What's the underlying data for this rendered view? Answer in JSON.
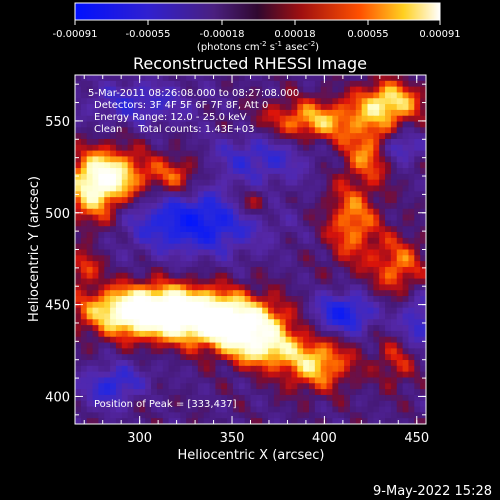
{
  "colorbar": {
    "ticks": [
      "-0.00091",
      "-0.00055",
      "-0.00018",
      "0.00018",
      "0.00055",
      "0.00091"
    ],
    "unit_main": "(photons cm",
    "unit_sup1": "-2",
    "unit_mid": " s",
    "unit_sup2": "-1",
    "unit_end": " asec",
    "unit_sup3": "-2",
    "unit_close": ")",
    "colors": [
      "#0000ff",
      "#6a1fb0",
      "#3a1d7a",
      "#b01010",
      "#ff4000",
      "#ffff60",
      "#ffffff"
    ]
  },
  "chart_data": {
    "type": "heatmap",
    "title": "Reconstructed RHESSI Image",
    "xlabel": "Heliocentric X (arcsec)",
    "ylabel": "Heliocentric Y (arcsec)",
    "xlim": [
      265,
      455
    ],
    "ylim": [
      385,
      575
    ],
    "xticks": [
      300,
      350,
      400,
      450
    ],
    "yticks": [
      400,
      450,
      500,
      550
    ],
    "xtick_labels": [
      "300",
      "350",
      "400",
      "450"
    ],
    "ytick_labels": [
      "400",
      "450",
      "500",
      "550"
    ],
    "value_range": [
      -0.00091,
      0.00091
    ],
    "peak_position": [
      333,
      437
    ],
    "annotations": {
      "time": "5-Mar-2011 08:26:08.000 to 08:27:08.000",
      "detectors": "Detectors: 3F 4F 5F 6F 7F 8F, Att 0",
      "energy": "Energy Range: 12.0 - 25.0 keV",
      "method": "Clean     Total counts: 1.43E+03",
      "peak": "Position of Peak = [333,437]"
    }
  },
  "footer": {
    "date": "9-May-2022 15:28"
  }
}
